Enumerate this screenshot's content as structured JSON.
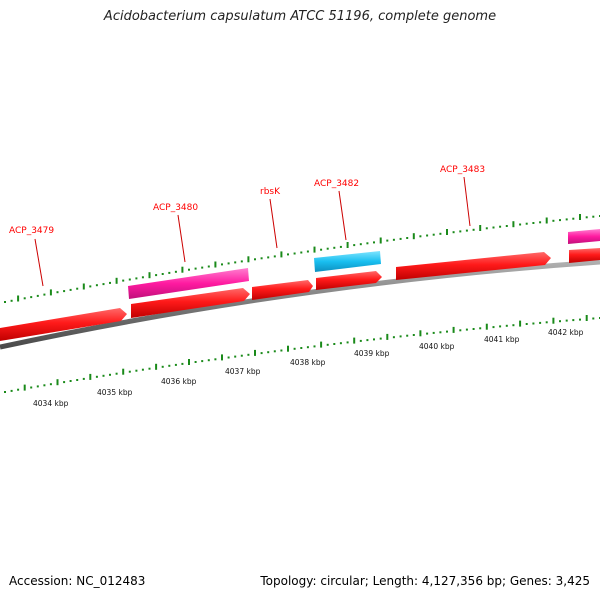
{
  "title": "Acidobacterium capsulatum ATCC 51196, complete genome",
  "footer": {
    "accession": "Accession: NC_012483",
    "summary": "Topology: circular; Length: 4,127,356 bp; Genes: 3,425"
  },
  "colors": {
    "forward_cds": "#ff1a1a",
    "rna_gene": "#ff1aa0",
    "highlight_gene": "#19bff0",
    "backbone": "#7a7a7a",
    "tick": "#1a8a1a",
    "label": "#ff0000"
  },
  "gene_labels": [
    "ACP_3479",
    "ACP_3480",
    "rbsK",
    "ACP_3482",
    "ACP_3483"
  ],
  "kbp_labels": [
    "4034 kbp",
    "4035 kbp",
    "4036 kbp",
    "4037 kbp",
    "4038 kbp",
    "4039 kbp",
    "4040 kbp",
    "4041 kbp",
    "4042 kbp"
  ]
}
